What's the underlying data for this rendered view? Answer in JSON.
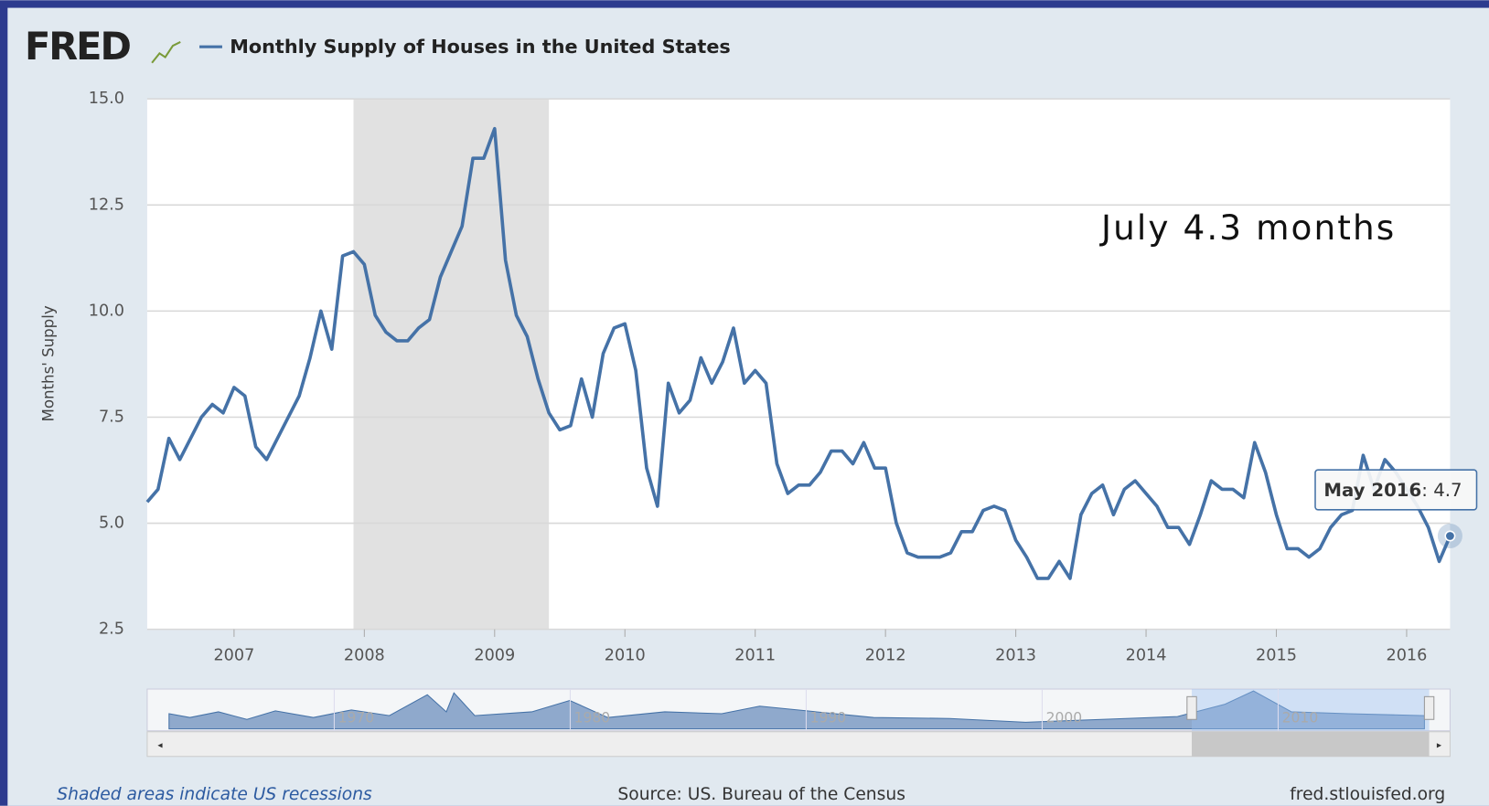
{
  "logo": "FRED",
  "chart_data": {
    "type": "line",
    "ylabel": "Months' Supply",
    "annotation": "July 4.3 months",
    "series": [
      {
        "name": "Monthly Supply of Houses in the United States",
        "color": "#4572a7",
        "values": [
          5.5,
          5.8,
          7.0,
          6.5,
          7.0,
          7.5,
          7.8,
          7.6,
          8.2,
          8.0,
          6.8,
          6.5,
          7.0,
          7.5,
          8.0,
          8.9,
          10.0,
          9.1,
          11.3,
          11.4,
          11.1,
          9.9,
          9.5,
          9.3,
          9.3,
          9.6,
          9.8,
          10.8,
          11.4,
          12.0,
          13.6,
          13.6,
          14.3,
          11.2,
          9.9,
          9.4,
          8.4,
          7.6,
          7.2,
          7.3,
          8.4,
          7.5,
          9.0,
          9.6,
          9.7,
          8.6,
          6.3,
          5.4,
          8.3,
          7.6,
          7.9,
          8.9,
          8.3,
          8.8,
          9.6,
          8.3,
          8.6,
          8.3,
          6.4,
          5.7,
          5.9,
          5.9,
          6.2,
          6.7,
          6.7,
          6.4,
          6.9,
          6.3,
          6.3,
          5.0,
          4.3,
          4.2,
          4.2,
          4.2,
          4.3,
          4.8,
          4.8,
          5.3,
          5.4,
          5.3,
          4.6,
          4.2,
          3.7,
          3.7,
          4.1,
          3.7,
          5.2,
          5.7,
          5.9,
          5.2,
          5.8,
          6.0,
          5.7,
          5.4,
          4.9,
          4.9,
          4.5,
          5.2,
          6.0,
          5.8,
          5.8,
          5.6,
          6.9,
          6.2,
          5.2,
          4.4,
          4.4,
          4.2,
          4.4,
          4.9,
          5.2,
          5.3,
          6.6,
          5.8,
          6.5,
          6.2,
          5.8,
          5.4,
          4.9,
          4.1,
          4.7
        ]
      }
    ],
    "x": [
      "2006-05",
      "2006-06",
      "2006-07",
      "2006-08",
      "2006-09",
      "2006-10",
      "2006-11",
      "2006-12",
      "2007-01",
      "2007-02",
      "2007-03",
      "2007-04",
      "2007-05",
      "2007-06",
      "2007-07",
      "2007-08",
      "2007-09",
      "2007-10",
      "2007-11",
      "2007-12",
      "2008-01",
      "2008-02",
      "2008-03",
      "2008-04",
      "2008-05",
      "2008-06",
      "2008-07",
      "2008-08",
      "2008-09",
      "2008-10",
      "2008-11",
      "2008-12",
      "2009-01",
      "2009-02",
      "2009-03",
      "2009-04",
      "2009-05",
      "2009-06",
      "2009-07",
      "2009-08",
      "2009-09",
      "2009-10",
      "2009-11",
      "2009-12",
      "2010-01",
      "2010-02",
      "2010-03",
      "2010-04",
      "2010-05",
      "2010-06",
      "2010-07",
      "2010-08",
      "2010-09",
      "2010-10",
      "2010-11",
      "2010-12",
      "2011-01",
      "2011-02",
      "2011-03",
      "2011-04",
      "2011-05",
      "2011-06",
      "2011-07",
      "2011-08",
      "2011-09",
      "2011-10",
      "2011-11",
      "2011-12",
      "2012-01",
      "2012-02",
      "2012-03",
      "2012-04",
      "2012-05",
      "2012-06",
      "2012-07",
      "2012-08",
      "2012-09",
      "2012-10",
      "2012-11",
      "2012-12",
      "2013-01",
      "2013-02",
      "2013-03",
      "2013-04",
      "2013-05",
      "2013-06",
      "2013-07",
      "2013-08",
      "2013-09",
      "2013-10",
      "2013-11",
      "2013-12",
      "2014-01",
      "2014-02",
      "2014-03",
      "2014-04",
      "2014-05",
      "2014-06",
      "2014-07",
      "2014-08",
      "2014-09",
      "2014-10",
      "2014-11",
      "2014-12",
      "2015-01",
      "2015-02",
      "2015-03",
      "2015-04",
      "2015-05",
      "2015-06",
      "2015-07",
      "2015-08",
      "2015-09",
      "2015-10",
      "2015-11",
      "2015-12",
      "2016-01",
      "2016-02",
      "2016-03",
      "2016-04",
      "2016-05"
    ],
    "xlim": [
      "2006-05",
      "2016-05"
    ],
    "xticks": [
      2007,
      2008,
      2009,
      2010,
      2011,
      2012,
      2013,
      2014,
      2015,
      2016
    ],
    "ylim": [
      2.5,
      15
    ],
    "yticks": [
      2.5,
      {
        "value": 5,
        "label": "5.0"
      },
      7.5,
      {
        "value": 10,
        "label": "10.0"
      },
      12.5,
      {
        "value": 15,
        "label": "15.0"
      }
    ],
    "grid": true,
    "recessions": [
      [
        "2007-12",
        "2009-06"
      ]
    ],
    "tooltip": {
      "label": "May 2016"
    },
    "navigator_ticks": [
      1970,
      1980,
      1990,
      2000,
      2010
    ],
    "footnote": "Shaded areas indicate US recessions",
    "source": "Source: US. Bureau of the Census",
    "site": "fred.stlouisfed.org"
  }
}
